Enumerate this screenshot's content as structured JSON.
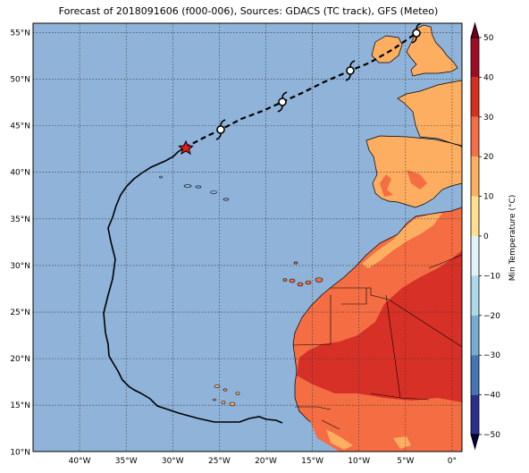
{
  "title": "Forecast of 2018091606 (f000-006), Sources: GDACS (TC track), GFS (Meteo)",
  "lat_labels": [
    "55°N",
    "50°N",
    "45°N",
    "40°N",
    "35°N",
    "30°N",
    "25°N",
    "20°N",
    "15°N",
    "10°N"
  ],
  "lon_labels": [
    "40°W",
    "35°W",
    "30°W",
    "25°W",
    "20°W",
    "15°W",
    "10°W",
    "5°W",
    "0°"
  ],
  "colorbar": {
    "label": "Min Temperature (°C)",
    "ticks": [
      "50",
      "40",
      "30",
      "20",
      "10",
      "0",
      "−10",
      "−20",
      "−30",
      "−40",
      "−50"
    ]
  },
  "colors": {
    "ocean": "#8fb3d9",
    "land_warm_20_30": "#fdae61",
    "land_30_40": "#f46d43",
    "land_hot": "#d73027",
    "land_10_20": "#fee090",
    "track": "#000000",
    "storm_marker": "#e31a1c"
  },
  "map_extent": {
    "lon": [
      -45,
      1.5
    ],
    "lat": [
      10,
      56
    ]
  },
  "track_history": [
    [
      -37.3,
      34.2
    ],
    [
      -36.4,
      37
    ],
    [
      -35.2,
      39
    ],
    [
      -32.5,
      40.5
    ],
    [
      -30.4,
      41.6
    ],
    [
      -28.3,
      42.6
    ]
  ],
  "track_forecast": [
    [
      -28.3,
      42.6
    ],
    [
      -25,
      44.6
    ],
    [
      -18,
      47.5
    ],
    [
      -11,
      50.8
    ],
    [
      -3.5,
      55.5
    ]
  ],
  "current_position": [
    -28.3,
    42.6
  ],
  "forecast_symbols": [
    [
      -24.8,
      44.6
    ],
    [
      -17.9,
      47.6
    ],
    [
      -10.8,
      50.8
    ],
    [
      -3.3,
      55.5
    ]
  ]
}
